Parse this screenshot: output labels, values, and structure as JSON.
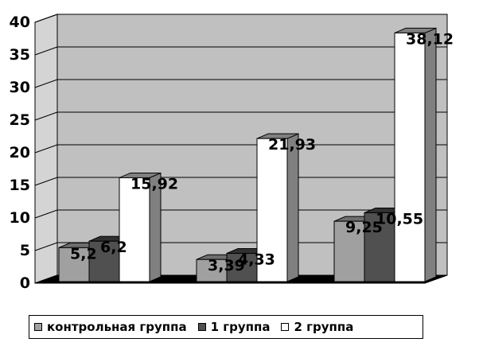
{
  "chart_data": {
    "type": "bar",
    "categories": [
      "",
      "",
      ""
    ],
    "series": [
      {
        "name": "контрольная группа",
        "values": [
          5.2,
          3.39,
          9.25
        ],
        "labels": [
          "5,2",
          "3,39",
          "9,25"
        ],
        "color": "#a0a0a0",
        "side_color": "#6e6e6e"
      },
      {
        "name": "1 группа",
        "values": [
          6.2,
          4.33,
          10.55
        ],
        "labels": [
          "6,2",
          "4,33",
          "10,55"
        ],
        "color": "#505050",
        "side_color": "#303030"
      },
      {
        "name": "2 группа",
        "values": [
          15.92,
          21.93,
          38.12
        ],
        "labels": [
          "15,92",
          "21,93",
          "38,12"
        ],
        "color": "#ffffff",
        "side_color": "#808080"
      }
    ],
    "ylim": [
      0,
      40
    ],
    "yticks": [
      "0",
      "5",
      "10",
      "15",
      "20",
      "25",
      "30",
      "35",
      "40"
    ],
    "grid": true,
    "legend_position": "bottom",
    "plot_background": "#c0c0c0"
  }
}
